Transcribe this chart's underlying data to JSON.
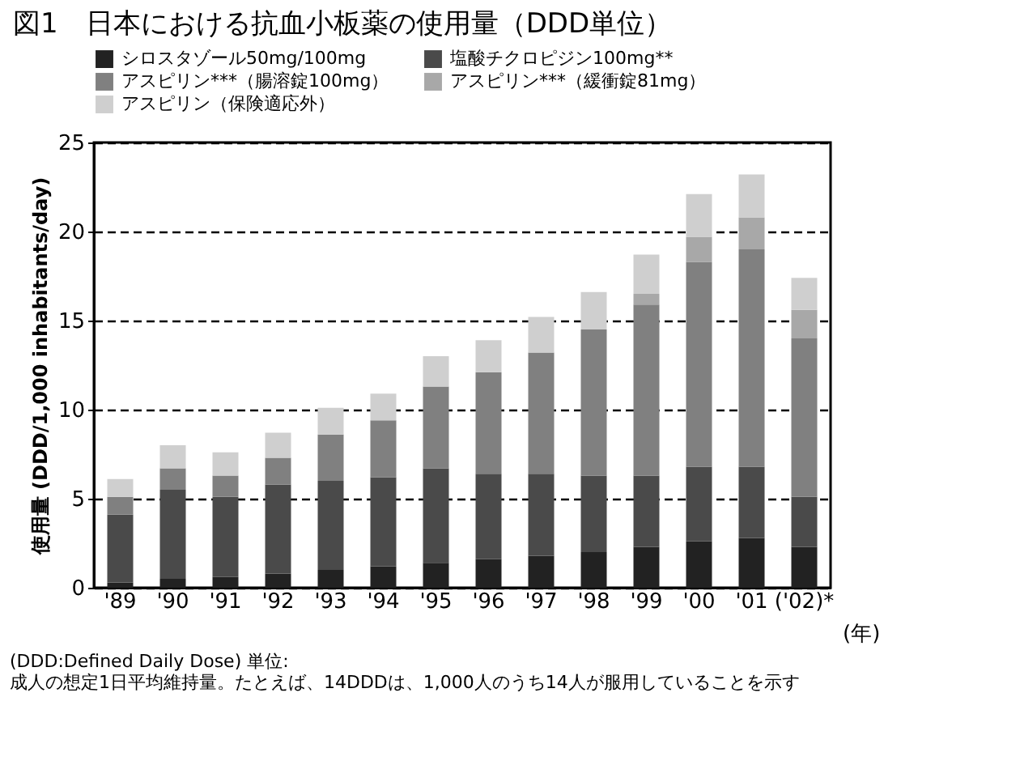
{
  "chart_data": {
    "type": "bar",
    "stacked": true,
    "title": "図1　日本における抗血小板薬の使用量（DDD単位）",
    "xlabel": "(年)",
    "ylabel": "使用量 (DDD/1,000 inhabitants/day)",
    "categories": [
      "'89",
      "'90",
      "'91",
      "'92",
      "'93",
      "'94",
      "'95",
      "'96",
      "'97",
      "'98",
      "'99",
      "'00",
      "'01",
      "('02)*"
    ],
    "series": [
      {
        "name": "シロスタゾール50mg/100mg",
        "color": "#222222",
        "values": [
          0.3,
          0.5,
          0.6,
          0.8,
          1.0,
          1.2,
          1.4,
          1.6,
          1.8,
          2.0,
          2.3,
          2.6,
          2.8,
          2.3
        ]
      },
      {
        "name": "塩酸チクロピジン100mg**",
        "color": "#4a4a4a",
        "values": [
          3.8,
          5.0,
          4.5,
          5.0,
          5.0,
          5.0,
          5.3,
          4.8,
          4.6,
          4.3,
          4.0,
          4.2,
          4.0,
          2.8
        ]
      },
      {
        "name": "アスピリン***（腸溶錠100mg）",
        "color": "#808080",
        "values": [
          1.0,
          1.2,
          1.2,
          1.5,
          2.6,
          3.2,
          4.6,
          5.7,
          6.8,
          8.2,
          9.6,
          11.5,
          12.2,
          8.9
        ]
      },
      {
        "name": "アスピリン***（緩衝錠81mg）",
        "color": "#a8a8a8",
        "values": [
          0,
          0,
          0,
          0,
          0,
          0,
          0,
          0,
          0,
          0,
          0.6,
          1.4,
          1.8,
          1.6
        ]
      },
      {
        "name": "アスピリン（保険適応外）",
        "color": "#cfcfcf",
        "values": [
          1.0,
          1.3,
          1.3,
          1.4,
          1.5,
          1.5,
          1.7,
          1.8,
          2.0,
          2.1,
          2.2,
          2.4,
          2.4,
          1.8
        ]
      }
    ],
    "ylim": [
      0,
      25
    ],
    "yticks": [
      0,
      5,
      10,
      15,
      20,
      25
    ],
    "grid": "y",
    "legend": "top",
    "annotations": [
      "(DDD:Defined Daily Dose) 単位:",
      "成人の想定1日平均維持量。たとえば、14DDDは、1,000人のうち14人が服用していることを示す"
    ]
  }
}
